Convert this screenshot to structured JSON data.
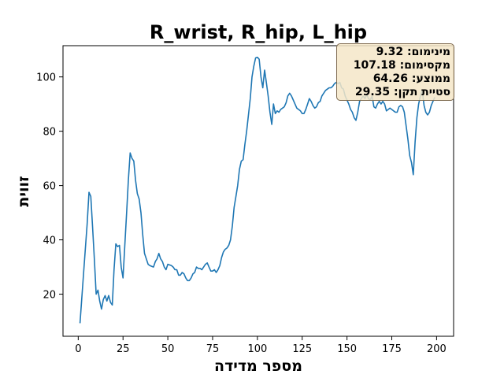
{
  "chart_data": {
    "type": "line",
    "title": "R_wrist, R_hip, L_hip",
    "xlabel": "מספר מדידה",
    "ylabel": "זווית",
    "xlim": [
      -8.5,
      209.5
    ],
    "ylim": [
      4.5,
      111.5
    ],
    "xticks": [
      0,
      25,
      50,
      75,
      100,
      125,
      150,
      175,
      200
    ],
    "yticks": [
      20,
      40,
      60,
      80,
      100
    ],
    "grid": false,
    "series": [
      {
        "color": "#1f77b4",
        "points": [
          [
            1,
            9.3
          ],
          [
            3,
            28
          ],
          [
            5,
            46
          ],
          [
            6,
            57.5
          ],
          [
            7,
            56
          ],
          [
            8,
            45
          ],
          [
            9,
            33
          ],
          [
            10,
            20
          ],
          [
            11,
            21.5
          ],
          [
            12,
            17.5
          ],
          [
            13,
            14.5
          ],
          [
            14,
            18
          ],
          [
            15,
            19.5
          ],
          [
            16,
            17.5
          ],
          [
            17,
            19.5
          ],
          [
            18,
            17
          ],
          [
            19,
            16
          ],
          [
            20,
            29
          ],
          [
            21,
            38.5
          ],
          [
            22,
            37.5
          ],
          [
            23,
            38
          ],
          [
            24,
            30
          ],
          [
            25,
            26
          ],
          [
            26,
            38
          ],
          [
            27,
            50
          ],
          [
            28,
            62
          ],
          [
            29,
            72
          ],
          [
            30,
            70
          ],
          [
            31,
            69
          ],
          [
            32,
            62
          ],
          [
            33,
            57
          ],
          [
            34,
            55
          ],
          [
            35,
            50
          ],
          [
            36,
            42
          ],
          [
            37,
            35
          ],
          [
            38,
            33
          ],
          [
            39,
            31
          ],
          [
            40,
            30.5
          ],
          [
            42,
            30
          ],
          [
            43,
            32
          ],
          [
            44,
            33
          ],
          [
            45,
            35
          ],
          [
            46,
            33
          ],
          [
            47,
            32
          ],
          [
            48,
            30
          ],
          [
            49,
            29
          ],
          [
            50,
            31
          ],
          [
            52,
            30.5
          ],
          [
            53,
            30
          ],
          [
            54,
            29
          ],
          [
            55,
            29
          ],
          [
            56,
            27
          ],
          [
            57,
            27
          ],
          [
            58,
            28
          ],
          [
            59,
            27.5
          ],
          [
            60,
            26
          ],
          [
            61,
            25
          ],
          [
            62,
            25
          ],
          [
            63,
            26
          ],
          [
            64,
            27.5
          ],
          [
            65,
            28
          ],
          [
            66,
            30
          ],
          [
            67,
            29.5
          ],
          [
            68,
            29.5
          ],
          [
            69,
            29
          ],
          [
            70,
            30
          ],
          [
            71,
            31
          ],
          [
            72,
            31.5
          ],
          [
            73,
            30
          ],
          [
            74,
            28.5
          ],
          [
            75,
            28.5
          ],
          [
            76,
            29
          ],
          [
            77,
            28
          ],
          [
            78,
            29
          ],
          [
            79,
            30.5
          ],
          [
            80,
            33.5
          ],
          [
            81,
            35.5
          ],
          [
            82,
            36.5
          ],
          [
            83,
            37
          ],
          [
            84,
            38
          ],
          [
            85,
            40
          ],
          [
            86,
            45
          ],
          [
            87,
            52
          ],
          [
            88,
            56
          ],
          [
            89,
            60
          ],
          [
            90,
            66
          ],
          [
            91,
            69
          ],
          [
            92,
            69.5
          ],
          [
            93,
            75
          ],
          [
            94,
            80
          ],
          [
            95,
            86
          ],
          [
            96,
            92
          ],
          [
            97,
            100
          ],
          [
            98,
            104
          ],
          [
            99,
            107
          ],
          [
            100,
            107.2
          ],
          [
            101,
            106.5
          ],
          [
            102,
            100
          ],
          [
            103,
            96
          ],
          [
            104,
            102.5
          ],
          [
            105,
            98
          ],
          [
            106,
            93
          ],
          [
            107,
            87
          ],
          [
            108,
            82.5
          ],
          [
            109,
            90
          ],
          [
            110,
            86.5
          ],
          [
            111,
            87.5
          ],
          [
            112,
            87
          ],
          [
            113,
            88
          ],
          [
            114,
            88.5
          ],
          [
            115,
            89
          ],
          [
            116,
            90.5
          ],
          [
            117,
            93
          ],
          [
            118,
            94
          ],
          [
            119,
            93
          ],
          [
            120,
            91.5
          ],
          [
            121,
            90
          ],
          [
            122,
            88.5
          ],
          [
            123,
            88
          ],
          [
            124,
            87.5
          ],
          [
            125,
            86.5
          ],
          [
            126,
            86.5
          ],
          [
            127,
            88
          ],
          [
            128,
            90
          ],
          [
            129,
            92
          ],
          [
            130,
            91
          ],
          [
            131,
            89.5
          ],
          [
            132,
            88.5
          ],
          [
            133,
            89
          ],
          [
            134,
            90.5
          ],
          [
            135,
            91
          ],
          [
            136,
            93
          ],
          [
            137,
            94
          ],
          [
            138,
            95
          ],
          [
            139,
            95.5
          ],
          [
            140,
            96
          ],
          [
            141,
            96
          ],
          [
            142,
            96.5
          ],
          [
            143,
            97.5
          ],
          [
            144,
            98
          ],
          [
            145,
            97.5
          ],
          [
            146,
            98
          ],
          [
            147,
            96
          ],
          [
            148,
            95.5
          ],
          [
            149,
            93
          ],
          [
            150,
            91.5
          ],
          [
            151,
            90
          ],
          [
            152,
            88
          ],
          [
            153,
            87
          ],
          [
            154,
            85
          ],
          [
            155,
            84
          ],
          [
            156,
            87
          ],
          [
            157,
            91
          ],
          [
            158,
            92
          ],
          [
            159,
            93
          ],
          [
            160,
            92
          ],
          [
            161,
            93.5
          ],
          [
            162,
            92
          ],
          [
            163,
            91.5
          ],
          [
            164,
            93
          ],
          [
            165,
            89
          ],
          [
            166,
            88.5
          ],
          [
            167,
            90
          ],
          [
            168,
            91
          ],
          [
            169,
            90
          ],
          [
            170,
            91
          ],
          [
            171,
            90
          ],
          [
            172,
            87.5
          ],
          [
            173,
            88
          ],
          [
            174,
            88.5
          ],
          [
            175,
            88
          ],
          [
            176,
            87.5
          ],
          [
            177,
            87
          ],
          [
            178,
            87
          ],
          [
            179,
            89
          ],
          [
            180,
            89.5
          ],
          [
            181,
            89
          ],
          [
            182,
            87
          ],
          [
            183,
            82
          ],
          [
            184,
            77
          ],
          [
            185,
            71
          ],
          [
            186,
            68.5
          ],
          [
            187,
            64
          ],
          [
            188,
            76
          ],
          [
            189,
            85
          ],
          [
            190,
            90
          ],
          [
            191,
            93
          ],
          [
            192,
            95
          ],
          [
            193,
            89.5
          ],
          [
            194,
            87
          ],
          [
            195,
            86
          ],
          [
            196,
            87
          ],
          [
            197,
            89.5
          ],
          [
            198,
            91
          ],
          [
            199,
            92.5
          ]
        ]
      }
    ],
    "stats": [
      {
        "label": "מינימום:",
        "value": "9.32"
      },
      {
        "label": "מקסימום:",
        "value": "107.18"
      },
      {
        "label": "ממוצע:",
        "value": "64.26"
      },
      {
        "label": "סטיית תקן:",
        "value": "29.35"
      }
    ]
  }
}
